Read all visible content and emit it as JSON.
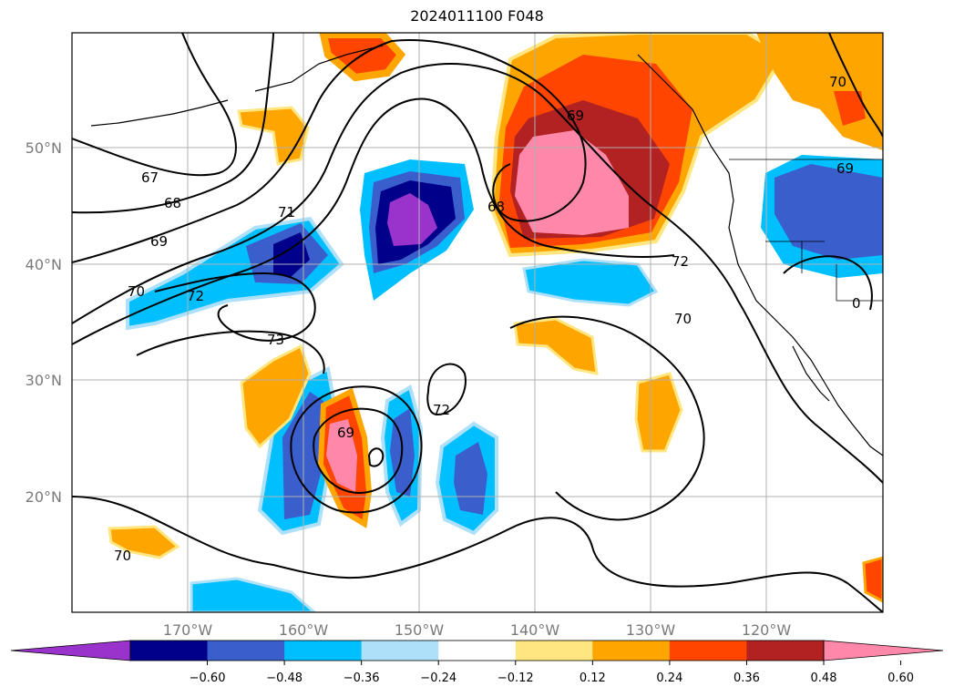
{
  "title": "2024011100 F048",
  "map": {
    "lat_labels": [
      "50°N",
      "40°N",
      "30°N",
      "20°N"
    ],
    "lon_labels": [
      "170°W",
      "160°W",
      "150°W",
      "140°W",
      "130°W",
      "120°W"
    ],
    "contour_labels": [
      "67",
      "68",
      "69",
      "70",
      "71",
      "72",
      "73",
      "68",
      "69",
      "72",
      "70",
      "69",
      "72",
      "70",
      "70",
      "69",
      "0"
    ]
  },
  "colorbar": {
    "tick_labels": [
      "−0.60",
      "−0.48",
      "−0.36",
      "−0.24",
      "−0.12",
      "0.12",
      "0.24",
      "0.36",
      "0.48",
      "0.60"
    ],
    "colors": [
      "#9933cc",
      "#00008b",
      "#3a5fcd",
      "#00bfff",
      "#aee1f9",
      "#ffffff",
      "#ffe680",
      "#ffa500",
      "#ff4500",
      "#b22222",
      "#ff88aa"
    ]
  }
}
